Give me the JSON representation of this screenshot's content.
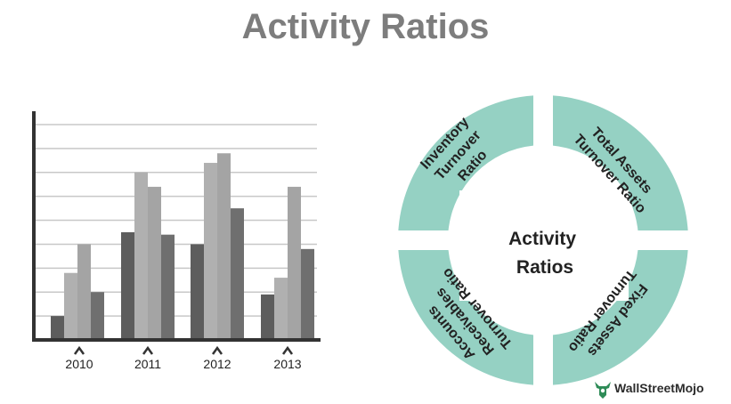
{
  "title": "Activity Ratios",
  "chart_data": {
    "type": "bar",
    "categories": [
      "2010",
      "2011",
      "2012",
      "2013"
    ],
    "series": [
      {
        "values": [
          1.0,
          4.5,
          4.0,
          1.9
        ]
      },
      {
        "values": [
          2.8,
          7.0,
          7.4,
          2.6
        ]
      },
      {
        "values": [
          4.0,
          6.4,
          7.8,
          6.4
        ]
      },
      {
        "values": [
          2.0,
          4.4,
          5.5,
          3.8
        ]
      }
    ],
    "colors": [
      "#5d5d5d",
      "#b0b0b0",
      "#a4a4a4",
      "#6f6f6f"
    ],
    "ylim": [
      0,
      9
    ],
    "grid": true
  },
  "diagram": {
    "center_label": [
      "Activity",
      "Ratios"
    ],
    "quadrants": [
      {
        "lines": [
          "Inventory",
          "Turnover",
          "Ratio"
        ]
      },
      {
        "lines": [
          "Total Assets",
          "Turnover Ratio"
        ]
      },
      {
        "lines": [
          "Accounts",
          "Receivables",
          "Turnover Ratio"
        ]
      },
      {
        "lines": [
          "Fixed Assets",
          "Turnover Ratio"
        ]
      }
    ],
    "color": "#95d1c3"
  },
  "logo": {
    "text": "WallStreetMojo",
    "color": "#2e8b57"
  }
}
